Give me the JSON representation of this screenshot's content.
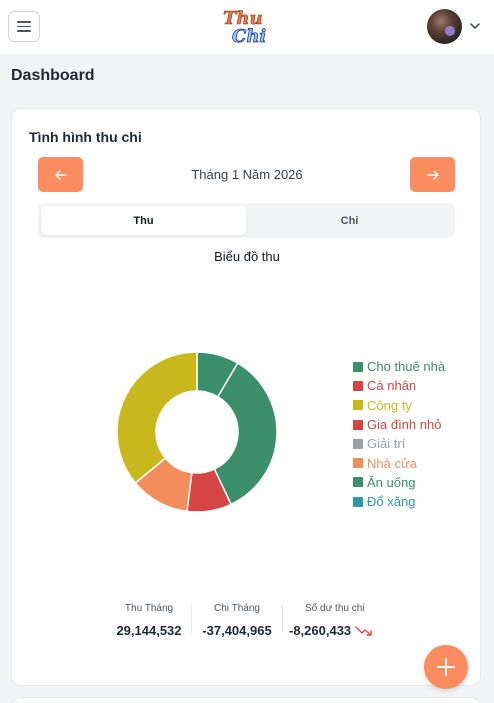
{
  "header": {
    "logo_text_top": "Thu",
    "logo_text_bottom": "Chi"
  },
  "page": {
    "title": "Dashboard"
  },
  "card": {
    "title": "Tình hình thu chi",
    "month_label": "Tháng 1 Năm 2026",
    "tabs": [
      {
        "label": "Thu",
        "active": true
      },
      {
        "label": "Chi",
        "active": false
      }
    ],
    "chart_title": "Biểu đồ thu"
  },
  "chart_data": {
    "type": "pie",
    "title": "Biểu đồ thu",
    "categories": [
      "Cho thuê nhà",
      "Cá nhân",
      "Công ty",
      "Gia đình nhỏ",
      "Giải trí",
      "Nhà cửa",
      "Ăn uống",
      "Đổ xăng"
    ],
    "legend_colors": [
      "#3b8f6a",
      "#d64545",
      "#c9b81c",
      "#d64545",
      "#9aa0a6",
      "#f28e5b",
      "#3b8f6a",
      "#2e9aa8"
    ],
    "slices": [
      {
        "label": "Cho thuê nhà",
        "value": 8.5,
        "color": "#3b8f6a"
      },
      {
        "label": "Ăn uống",
        "value": 34.5,
        "color": "#3b8f6a"
      },
      {
        "label": "Gia đình nhỏ",
        "value": 9,
        "color": "#d64545"
      },
      {
        "label": "Nhà cửa",
        "value": 12,
        "color": "#f28e5b"
      },
      {
        "label": "Công ty",
        "value": 36,
        "color": "#c9b81c"
      }
    ],
    "donut": true,
    "legend_position": "right"
  },
  "summary": {
    "income_label": "Thu Tháng",
    "income_value": "29,144,532",
    "expense_label": "Chi Tháng",
    "expense_value": "-37,404,965",
    "balance_label": "Số dư thu chi",
    "balance_value": "-8,260,433",
    "trend_color": "#ef4444"
  },
  "colors": {
    "accent": "#fb8c5f",
    "background": "#f3f4f6"
  },
  "icons": {
    "menu": "menu-icon",
    "prev": "arrow-left-icon",
    "next": "arrow-right-icon",
    "trend": "trending-down-icon",
    "fab": "plus-icon",
    "user_menu": "chevron-down-icon"
  }
}
